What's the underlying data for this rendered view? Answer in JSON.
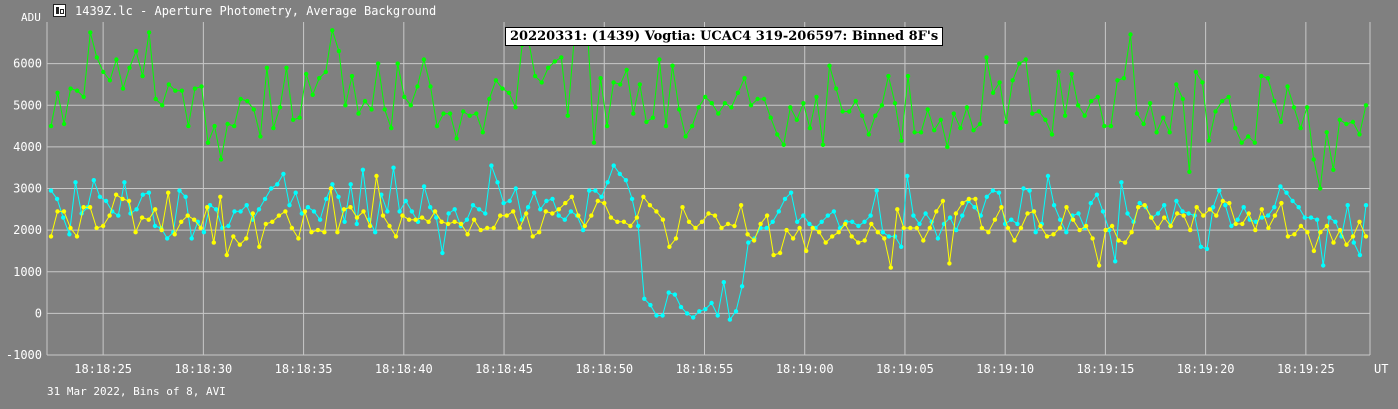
{
  "window": {
    "title": "1439Z.lc - Aperture Photometry, Average Background",
    "icon": "lightcurve-app-icon"
  },
  "footer": {
    "caption": "31 Mar 2022, Bins of 8, AVI"
  },
  "colors": {
    "background": "#808080",
    "grid": "#c8c8c8",
    "series_green": "#00ff00",
    "series_cyan": "#00ffff",
    "series_yellow": "#ffff00"
  },
  "chart_data": {
    "type": "line",
    "title": "20220331: (1439) Vogtia: UCAC4 319-206597: Binned 8F's",
    "ylabel": "ADU",
    "xlabel": "UT",
    "ylim": [
      -1000,
      7000
    ],
    "yticks": [
      -1000,
      0,
      1000,
      2000,
      3000,
      4000,
      5000,
      6000
    ],
    "xticks": [
      "18:18:25",
      "18:18:30",
      "18:18:35",
      "18:18:40",
      "18:18:45",
      "18:18:50",
      "18:18:55",
      "18:19:00",
      "18:19:05",
      "18:19:10",
      "18:19:15",
      "18:19:20",
      "18:19:25"
    ],
    "grid": true,
    "x_start": "18:18:22.2",
    "x_end": "18:19:28.2",
    "sample_interval_s": 0.2667,
    "series": [
      {
        "color": "#00ff00",
        "values": [
          4500,
          5300,
          4550,
          5400,
          5350,
          5200,
          6750,
          6150,
          5800,
          5600,
          6100,
          5400,
          5900,
          6300,
          5700,
          6750,
          5150,
          5000,
          5500,
          5350,
          5350,
          4500,
          5400,
          5450,
          4100,
          4500,
          3700,
          4550,
          4500,
          5150,
          5100,
          4900,
          4250,
          5900,
          4450,
          4950,
          5900,
          4650,
          4700,
          5750,
          5250,
          5650,
          5800,
          6800,
          6300,
          5000,
          5700,
          4800,
          5100,
          4900,
          6000,
          4900,
          4450,
          6000,
          5200,
          5000,
          5450,
          6100,
          5450,
          4500,
          4800,
          4800,
          4200,
          4850,
          4750,
          4800,
          4350,
          5150,
          5600,
          5400,
          5300,
          4950,
          6450,
          6550,
          5700,
          5550,
          5900,
          6050,
          6150,
          4750,
          6650,
          6600,
          6800,
          4100,
          5650,
          4500,
          5550,
          5500,
          5850,
          4800,
          5500,
          4600,
          4700,
          6100,
          4500,
          5950,
          4900,
          4250,
          4500,
          4950,
          5200,
          5050,
          4800,
          5050,
          4950,
          5300,
          5650,
          5000,
          5150,
          5150,
          4700,
          4300,
          4050,
          4950,
          4650,
          5050,
          4450,
          5200,
          4050,
          5950,
          5400,
          4850,
          4850,
          5100,
          4750,
          4300,
          4750,
          5000,
          5700,
          5050,
          4150,
          5700,
          4350,
          4350,
          4900,
          4400,
          4650,
          4000,
          4800,
          4450,
          4950,
          4400,
          4550,
          6150,
          5300,
          5550,
          4600,
          5600,
          6000,
          6100,
          4800,
          4850,
          4650,
          4300,
          5800,
          4750,
          5750,
          5000,
          4750,
          5100,
          5200,
          4500,
          4500,
          5600,
          5650,
          6700,
          4800,
          4550,
          5050,
          4350,
          4700,
          4350,
          5500,
          5150,
          3400,
          5800,
          5550,
          4150,
          4850,
          5100,
          5200,
          4450,
          4100,
          4250,
          4100,
          5700,
          5650,
          5100,
          4600,
          5450,
          4950,
          4450,
          4950,
          3700,
          3000,
          4350,
          3450,
          4650,
          4550,
          4600,
          4300,
          5000
        ]
      },
      {
        "color": "#00ffff",
        "values": [
          2950,
          2750,
          2300,
          1900,
          3150,
          2400,
          2550,
          3200,
          2800,
          2700,
          2450,
          2350,
          3150,
          2400,
          2500,
          2850,
          2900,
          2100,
          2050,
          1800,
          1950,
          2950,
          2800,
          1800,
          2200,
          1950,
          2600,
          2500,
          2050,
          2100,
          2450,
          2450,
          2600,
          2250,
          2500,
          2750,
          3000,
          3100,
          3350,
          2600,
          2900,
          2400,
          2550,
          2450,
          2250,
          2750,
          3100,
          2800,
          2200,
          3100,
          2150,
          3450,
          2250,
          1950,
          2850,
          2450,
          3500,
          2450,
          2700,
          2450,
          2200,
          3050,
          2550,
          2300,
          1450,
          2400,
          2500,
          2100,
          2250,
          2600,
          2500,
          2400,
          3550,
          3150,
          2650,
          2700,
          3000,
          2250,
          2550,
          2900,
          2500,
          2700,
          2750,
          2350,
          2250,
          2450,
          2350,
          2000,
          2950,
          2950,
          2800,
          3150,
          3550,
          3350,
          3200,
          2750,
          2100,
          350,
          200,
          -50,
          -50,
          500,
          450,
          150,
          0,
          -100,
          50,
          100,
          250,
          -50,
          750,
          -150,
          50,
          650,
          1700,
          1800,
          2050,
          2050,
          2200,
          2450,
          2750,
          2900,
          2200,
          2350,
          2150,
          2050,
          2200,
          2350,
          2450,
          2050,
          2200,
          2200,
          2100,
          2200,
          2350,
          2950,
          1950,
          1850,
          1850,
          1600,
          3300,
          2350,
          2150,
          2400,
          2200,
          1800,
          2150,
          2300,
          2000,
          2350,
          2700,
          2550,
          2350,
          2800,
          2950,
          2900,
          2150,
          2250,
          2150,
          3000,
          2950,
          1950,
          2150,
          3300,
          2600,
          2250,
          1950,
          2350,
          2400,
          2050,
          2650,
          2850,
          2450,
          2000,
          1250,
          3150,
          2400,
          2200,
          2650,
          2550,
          2300,
          2400,
          2600,
          2100,
          2700,
          2450,
          2400,
          2350,
          1600,
          1550,
          2550,
          2950,
          2600,
          2100,
          2250,
          2550,
          2250,
          2200,
          2300,
          2350,
          2550,
          3050,
          2900,
          2700,
          2550,
          2300,
          2300,
          2250,
          1150,
          2300,
          2200,
          1850,
          2600,
          1700,
          1400,
          2600
        ]
      },
      {
        "color": "#ffff00",
        "values": [
          1850,
          2450,
          2450,
          2050,
          1850,
          2550,
          2550,
          2050,
          2100,
          2350,
          2850,
          2750,
          2700,
          1950,
          2300,
          2250,
          2500,
          2000,
          2900,
          1900,
          2200,
          2350,
          2250,
          2050,
          2550,
          1700,
          2800,
          1400,
          1850,
          1650,
          1800,
          2400,
          1600,
          2150,
          2200,
          2350,
          2450,
          2050,
          1800,
          2450,
          1950,
          2000,
          1950,
          3000,
          1950,
          2500,
          2550,
          2300,
          2450,
          2100,
          3300,
          2350,
          2100,
          1850,
          2350,
          2250,
          2250,
          2300,
          2200,
          2450,
          2200,
          2150,
          2200,
          2150,
          1900,
          2250,
          2000,
          2050,
          2050,
          2350,
          2350,
          2450,
          2050,
          2400,
          1850,
          1950,
          2450,
          2400,
          2500,
          2650,
          2800,
          2350,
          2100,
          2350,
          2700,
          2650,
          2300,
          2200,
          2200,
          2100,
          2300,
          2800,
          2600,
          2450,
          2250,
          1600,
          1800,
          2550,
          2200,
          2050,
          2200,
          2400,
          2350,
          2050,
          2150,
          2100,
          2600,
          1900,
          1750,
          2150,
          2350,
          1400,
          1450,
          2000,
          1800,
          2050,
          1500,
          2050,
          1950,
          1700,
          1850,
          1950,
          2150,
          1850,
          1700,
          1750,
          2150,
          1950,
          1800,
          1100,
          2500,
          2050,
          2050,
          2050,
          1750,
          2050,
          2450,
          2700,
          1200,
          2400,
          2650,
          2750,
          2750,
          2050,
          1950,
          2250,
          2550,
          2050,
          1750,
          2050,
          2400,
          2450,
          2100,
          1850,
          1900,
          2050,
          2550,
          2250,
          2000,
          2100,
          1800,
          1150,
          2000,
          2100,
          1750,
          1700,
          1950,
          2550,
          2600,
          2300,
          2050,
          2300,
          2100,
          2400,
          2350,
          2000,
          2550,
          2350,
          2500,
          2350,
          2700,
          2650,
          2150,
          2150,
          2400,
          2000,
          2500,
          2050,
          2350,
          2650,
          1850,
          1900,
          2100,
          1950,
          1500,
          1950,
          2100,
          1700,
          2000,
          1650,
          1850,
          2200,
          1850
        ]
      }
    ]
  }
}
